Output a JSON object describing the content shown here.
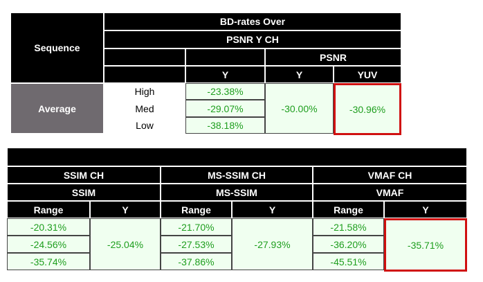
{
  "top_table": {
    "sequence_header": "Sequence",
    "title": "BD-rates Over",
    "subtitle": "PSNR Y CH",
    "psnr_header": "PSNR",
    "column_headers": [
      "Y",
      "Y",
      "YUV"
    ],
    "row_label": "Average",
    "levels": [
      "High",
      "Med",
      "Low"
    ],
    "psnr_y_ch": [
      "-23.38%",
      "-29.07%",
      "-38.18%"
    ],
    "psnr_y": "-30.00%",
    "psnr_yuv": "-30.96%"
  },
  "bottom_table": {
    "groups": [
      {
        "title": "SSIM CH",
        "metric": "SSIM",
        "range_header": "Range",
        "y_header": "Y",
        "range": [
          "-20.31%",
          "-24.56%",
          "-35.74%"
        ],
        "y": "-25.04%"
      },
      {
        "title": "MS-SSIM CH",
        "metric": "MS-SSIM",
        "range_header": "Range",
        "y_header": "Y",
        "range": [
          "-21.70%",
          "-27.53%",
          "-37.86%"
        ],
        "y": "-27.93%"
      },
      {
        "title": "VMAF CH",
        "metric": "VMAF",
        "range_header": "Range",
        "y_header": "Y",
        "range": [
          "-21.58%",
          "-36.20%",
          "-45.51%"
        ],
        "y": "-35.71%"
      }
    ]
  }
}
